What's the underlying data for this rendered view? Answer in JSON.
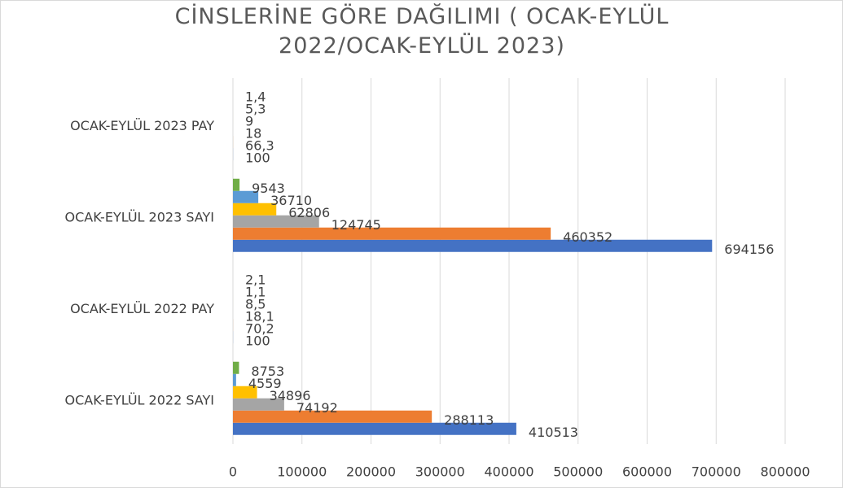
{
  "chart_data": {
    "type": "hbar",
    "title": "CİNSLERİNE GÖRE DAĞILIMI ( OCAK-EYLÜL 2022/OCAK-EYLÜL 2023)",
    "categories": [
      "OCAK-EYLÜL 2022 SAYI",
      "OCAK-EYLÜL 2022 PAY",
      "OCAK-EYLÜL 2023 SAYI",
      "OCAK-EYLÜL 2023 PAY"
    ],
    "series": [
      {
        "color": "#4472c4",
        "values": [
          410513,
          100,
          694156,
          100
        ],
        "value_labels": [
          "410513",
          "100",
          "694156",
          "100"
        ]
      },
      {
        "color": "#ed7d31",
        "values": [
          288113,
          70.2,
          460352,
          66.3
        ],
        "value_labels": [
          "288113",
          "70,2",
          "460352",
          "66,3"
        ]
      },
      {
        "color": "#a5a5a5",
        "values": [
          74192,
          18.1,
          124745,
          18
        ],
        "value_labels": [
          "74192",
          "18,1",
          "124745",
          "18"
        ]
      },
      {
        "color": "#ffc000",
        "values": [
          34896,
          8.5,
          62806,
          9
        ],
        "value_labels": [
          "34896",
          "8,5",
          "62806",
          "9"
        ]
      },
      {
        "color": "#5b9bd5",
        "values": [
          4559,
          1.1,
          36710,
          5.3
        ],
        "value_labels": [
          "4559",
          "1,1",
          "36710",
          "5,3"
        ]
      },
      {
        "color": "#70ad47",
        "values": [
          8753,
          2.1,
          9543,
          1.4
        ],
        "value_labels": [
          "8753",
          "2,1",
          "9543",
          "1,4"
        ]
      }
    ],
    "xlim": [
      0,
      800000
    ],
    "xticks": [
      0,
      100000,
      200000,
      300000,
      400000,
      500000,
      600000,
      700000,
      800000
    ],
    "grid": true
  }
}
